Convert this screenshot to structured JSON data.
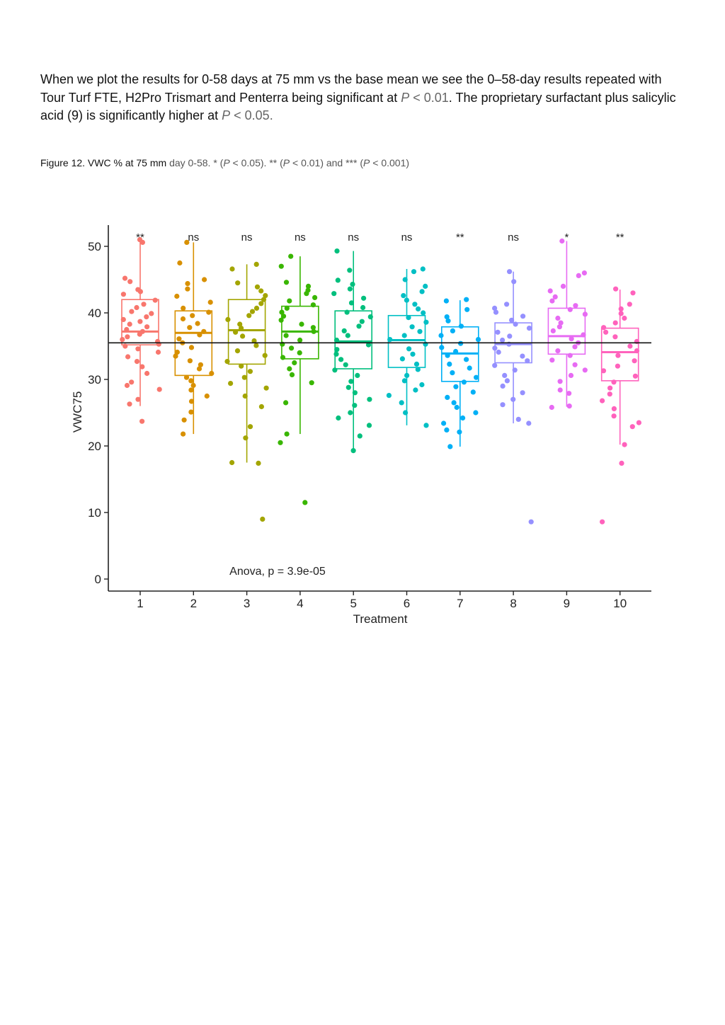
{
  "paragraph": {
    "part1": "When we plot the results for 0-58 days at 75 mm vs the base mean we see the 0–58-day results repeated with Tour Turf FTE, H2Pro Trismart and Penterra being significant at ",
    "p_letter1": "P",
    "p_val1": " < 0.01",
    "part2": ". The proprietary surfactant plus salicylic acid (9) is significantly higher at ",
    "p_letter2": "P",
    "p_val2": " < 0.05."
  },
  "caption": {
    "prefix": "Figure 12. VWC % at 75 mm ",
    "day": "day 0-58. * (",
    "p1": "P",
    "t1": " < 0.05). ** (",
    "p2": "P",
    "t2": " < 0.01) and *** (",
    "p3": "P",
    "t3": " < 0.001)"
  },
  "chart_data": {
    "type": "boxplot-jitter",
    "xlabel": "Treatment",
    "ylabel": "VWC75",
    "ylim": [
      0,
      53
    ],
    "yticks": [
      0,
      10,
      20,
      30,
      40,
      50
    ],
    "categories": [
      "1",
      "2",
      "3",
      "4",
      "5",
      "6",
      "7",
      "8",
      "9",
      "10"
    ],
    "base_mean": 35.5,
    "annotation": "Anova, p = 3.9e-05",
    "significance": [
      "**",
      "ns",
      "ns",
      "ns",
      "ns",
      "ns",
      "**",
      "ns",
      "*",
      "**"
    ],
    "colors": [
      "#F8766D",
      "#D89000",
      "#A3A500",
      "#39B600",
      "#00BF7D",
      "#00BFC4",
      "#00B0F6",
      "#9590FF",
      "#E76BF3",
      "#FF62BC"
    ],
    "boxes": [
      {
        "q1": 35.2,
        "median": 37.2,
        "q3": 42.0,
        "wlow": 26.0,
        "whigh": 51.0
      },
      {
        "q1": 30.6,
        "median": 37.0,
        "q3": 40.3,
        "wlow": 21.8,
        "whigh": 50.6
      },
      {
        "q1": 32.3,
        "median": 37.4,
        "q3": 42.0,
        "wlow": 17.5,
        "whigh": 47.3
      },
      {
        "q1": 33.1,
        "median": 37.2,
        "q3": 41.0,
        "wlow": 21.8,
        "whigh": 48.5
      },
      {
        "q1": 31.6,
        "median": 35.7,
        "q3": 40.3,
        "wlow": 19.3,
        "whigh": 49.3
      },
      {
        "q1": 31.8,
        "median": 35.9,
        "q3": 39.6,
        "wlow": 23.1,
        "whigh": 46.6
      },
      {
        "q1": 29.7,
        "median": 33.9,
        "q3": 37.9,
        "wlow": 19.9,
        "whigh": 41.9
      },
      {
        "q1": 32.5,
        "median": 35.3,
        "q3": 38.5,
        "wlow": 23.4,
        "whigh": 46.2
      },
      {
        "q1": 33.8,
        "median": 36.5,
        "q3": 40.7,
        "wlow": 25.9,
        "whigh": 50.8
      },
      {
        "q1": 29.8,
        "median": 34.1,
        "q3": 37.7,
        "wlow": 20.2,
        "whigh": 43.5
      }
    ],
    "points": [
      [
        51.0,
        50.6,
        45.2,
        44.7,
        43.5,
        43.2,
        42.8,
        41.9,
        41.3,
        40.8,
        40.2,
        39.9,
        39.4,
        39.0,
        38.7,
        38.3,
        37.9,
        37.5,
        37.2,
        36.8,
        36.4,
        36.0,
        35.7,
        35.3,
        35.0,
        34.6,
        34.1,
        33.4,
        32.7,
        31.9,
        30.9,
        29.6,
        29.1,
        28.5,
        27.0,
        26.3,
        23.7
      ],
      [
        50.6,
        47.5,
        45.0,
        44.4,
        43.6,
        42.5,
        41.6,
        40.7,
        40.1,
        39.6,
        39.1,
        38.4,
        37.8,
        37.2,
        36.7,
        36.1,
        35.5,
        34.8,
        34.1,
        33.5,
        32.8,
        32.2,
        31.6,
        30.9,
        30.3,
        29.8,
        29.1,
        28.4,
        27.5,
        26.7,
        25.1,
        23.9,
        21.8
      ],
      [
        47.3,
        46.6,
        44.5,
        43.9,
        43.3,
        42.6,
        42.0,
        41.4,
        40.7,
        40.2,
        39.6,
        39.0,
        38.3,
        37.7,
        37.1,
        36.5,
        35.8,
        35.1,
        34.3,
        33.6,
        32.7,
        32.0,
        31.2,
        30.3,
        29.4,
        28.7,
        27.5,
        25.9,
        22.9,
        21.2,
        17.5,
        17.4,
        9.0
      ],
      [
        48.5,
        47.0,
        44.6,
        44.0,
        43.4,
        42.9,
        42.3,
        41.8,
        41.2,
        40.7,
        40.1,
        39.5,
        38.9,
        38.3,
        37.8,
        37.2,
        36.6,
        35.9,
        35.3,
        34.7,
        34.0,
        33.3,
        32.5,
        31.6,
        30.7,
        29.5,
        26.5,
        21.8,
        20.5,
        11.5
      ],
      [
        49.3,
        46.4,
        44.9,
        44.3,
        43.6,
        42.9,
        42.2,
        41.5,
        40.8,
        40.1,
        39.4,
        38.7,
        38.0,
        37.3,
        36.6,
        35.9,
        35.2,
        34.5,
        33.8,
        33.0,
        32.2,
        31.4,
        30.6,
        29.7,
        28.8,
        28.0,
        27.0,
        26.1,
        25.0,
        24.2,
        23.1,
        21.5,
        19.3
      ],
      [
        46.6,
        46.2,
        45.0,
        44.0,
        43.2,
        42.6,
        41.9,
        41.3,
        40.6,
        40.0,
        39.3,
        38.6,
        37.9,
        37.2,
        36.6,
        36.0,
        35.3,
        34.6,
        33.8,
        33.1,
        32.3,
        31.5,
        30.6,
        29.8,
        29.2,
        28.4,
        27.6,
        26.5,
        25.0,
        23.1
      ],
      [
        42.0,
        41.8,
        40.5,
        39.4,
        38.8,
        38.0,
        37.3,
        36.6,
        36.0,
        35.4,
        34.8,
        34.2,
        33.6,
        33.0,
        32.3,
        31.7,
        31.0,
        30.3,
        29.6,
        28.9,
        28.1,
        27.3,
        26.5,
        25.8,
        25.0,
        24.2,
        23.4,
        22.4,
        22.1,
        19.9
      ],
      [
        46.2,
        44.7,
        41.3,
        40.7,
        40.1,
        39.5,
        38.9,
        38.3,
        37.7,
        37.1,
        36.5,
        35.9,
        35.3,
        34.7,
        34.1,
        33.5,
        32.8,
        32.1,
        31.4,
        30.6,
        29.8,
        29.0,
        28.0,
        27.0,
        26.2,
        24.0,
        23.4,
        8.6
      ],
      [
        50.8,
        46.0,
        45.6,
        44.0,
        43.3,
        42.4,
        41.8,
        41.1,
        40.5,
        39.8,
        39.2,
        38.5,
        37.9,
        37.3,
        36.7,
        36.1,
        35.5,
        34.9,
        34.3,
        33.6,
        32.9,
        32.2,
        31.4,
        30.6,
        29.7,
        28.4,
        27.9,
        26.0,
        25.8
      ],
      [
        43.6,
        43.0,
        41.3,
        40.6,
        39.9,
        39.2,
        38.5,
        37.8,
        37.1,
        36.4,
        35.7,
        35.0,
        34.3,
        33.6,
        32.8,
        32.0,
        31.3,
        30.5,
        29.6,
        28.7,
        27.8,
        26.8,
        25.6,
        24.5,
        23.5,
        22.9,
        20.2,
        17.4,
        8.6
      ]
    ]
  }
}
